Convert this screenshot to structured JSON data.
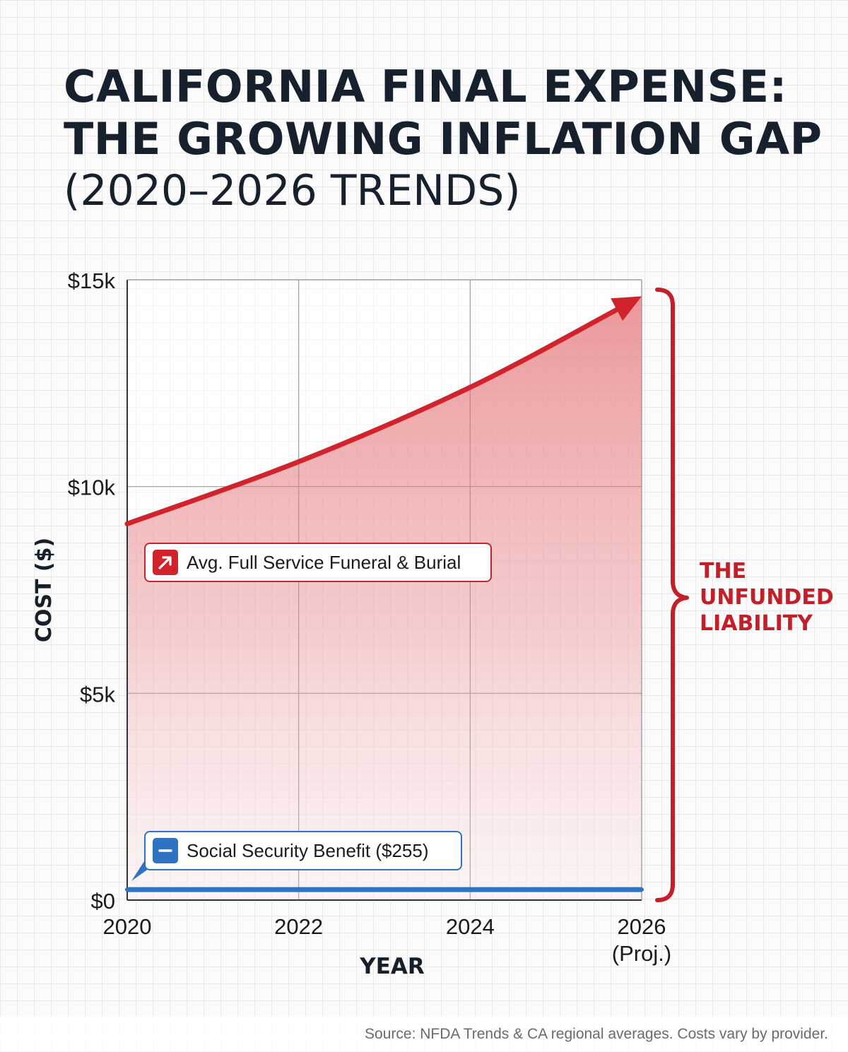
{
  "title": {
    "line1": "CALIFORNIA FINAL EXPENSE:",
    "line2": "THE GROWING INFLATION GAP",
    "line3": "(2020–2026 TRENDS)"
  },
  "chart_data": {
    "type": "area",
    "title": "CALIFORNIA FINAL EXPENSE: THE GROWING INFLATION GAP (2020–2026 TRENDS)",
    "xlabel": "YEAR",
    "ylabel": "COST ($)",
    "x": [
      2020,
      2022,
      2024,
      2026
    ],
    "x_tick_labels": [
      {
        "year": "2020",
        "note": ""
      },
      {
        "year": "2022",
        "note": ""
      },
      {
        "year": "2024",
        "note": ""
      },
      {
        "year": "2026",
        "note": "(Proj.)"
      }
    ],
    "xlim": [
      2020,
      2026
    ],
    "ylim": [
      0,
      15000
    ],
    "y_ticks": [
      0,
      5000,
      10000,
      15000
    ],
    "y_tick_labels": [
      "$0",
      "$5k",
      "$10k",
      "$15k"
    ],
    "grid": true,
    "series": [
      {
        "name": "Avg. Full Service Funeral & Burial",
        "color": "#d0232c",
        "values": [
          9100,
          10600,
          12400,
          14600
        ]
      },
      {
        "name": "Social Security Benefit ($255)",
        "color": "#2d73c2",
        "values": [
          255,
          255,
          255,
          255
        ]
      }
    ],
    "annotation": {
      "lines": [
        "THE",
        "UNFUNDED",
        "LIABILITY"
      ],
      "color": "#c21f29"
    }
  },
  "source": "Source: NFDA Trends & CA regional averages. Costs vary by provider."
}
